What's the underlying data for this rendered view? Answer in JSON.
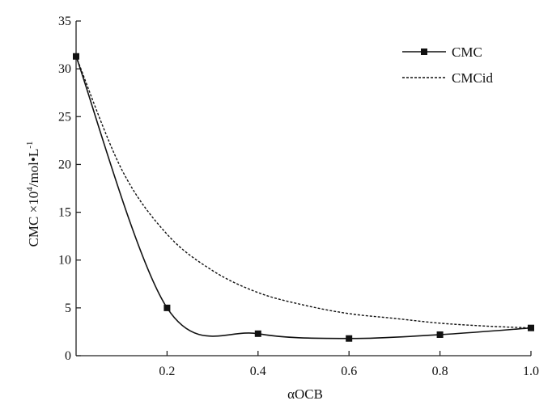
{
  "chart_data": {
    "type": "line",
    "title": "",
    "xlabel": "αOCB",
    "ylabel_main": "CMC ×10",
    "ylabel_sup1": "4",
    "ylabel_mid": "/mol•L",
    "ylabel_sup2": "-1",
    "xlim": [
      0,
      1.0
    ],
    "ylim": [
      0,
      35
    ],
    "x_ticks": [
      0.2,
      0.4,
      0.6,
      0.8,
      1.0
    ],
    "x_tick_labels": [
      "0.2",
      "0.4",
      "0.6",
      "0.8",
      "1.0"
    ],
    "y_ticks": [
      0,
      5,
      10,
      15,
      20,
      25,
      30,
      35
    ],
    "y_tick_labels": [
      "0",
      "5",
      "10",
      "15",
      "20",
      "25",
      "30",
      "35"
    ],
    "grid": false,
    "legend_position": "top-right",
    "series": [
      {
        "name": "CMC",
        "style": "solid",
        "marker": "square",
        "color": "#111111",
        "x": [
          0.0,
          0.2,
          0.4,
          0.6,
          0.8,
          1.0
        ],
        "y": [
          31.3,
          5.0,
          2.3,
          1.8,
          2.2,
          2.9
        ]
      },
      {
        "name": "CMCid",
        "style": "dashed",
        "marker": "none",
        "color": "#111111",
        "x": [
          0.0,
          0.1,
          0.2,
          0.3,
          0.4,
          0.5,
          0.6,
          0.7,
          0.8,
          0.9,
          1.0
        ],
        "y": [
          31.3,
          19.5,
          12.7,
          8.9,
          6.6,
          5.3,
          4.4,
          3.9,
          3.4,
          3.1,
          2.9
        ]
      }
    ]
  }
}
